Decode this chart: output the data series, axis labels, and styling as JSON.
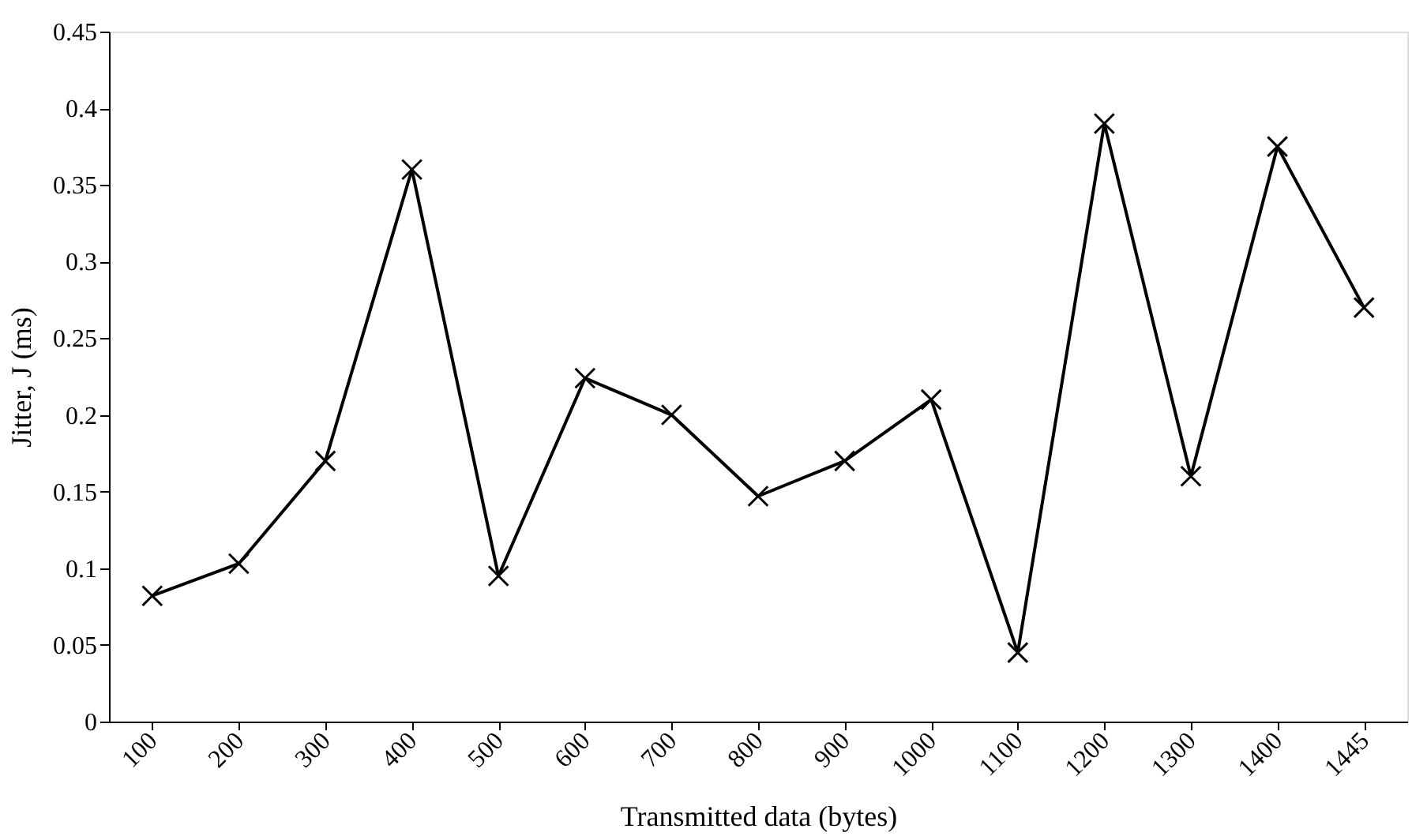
{
  "chart_data": {
    "type": "line",
    "xlabel": "Transmitted data (bytes)",
    "ylabel": "Jitter, J (ms)",
    "categories": [
      "100",
      "200",
      "300",
      "400",
      "500",
      "600",
      "700",
      "800",
      "900",
      "1000",
      "1100",
      "1200",
      "1300",
      "1400",
      "1445"
    ],
    "series": [
      {
        "color": "#000000",
        "values": [
          0.082,
          0.103,
          0.17,
          0.36,
          0.095,
          0.224,
          0.2,
          0.147,
          0.17,
          0.21,
          0.045,
          0.39,
          0.16,
          0.375,
          0.27
        ]
      }
    ],
    "ylim": [
      0,
      0.45
    ],
    "yticks": [
      0,
      0.05,
      0.1,
      0.15,
      0.2,
      0.25,
      0.3,
      0.35,
      0.4,
      0.45
    ],
    "grid": false,
    "marker": "cross",
    "line_style": "solid"
  }
}
